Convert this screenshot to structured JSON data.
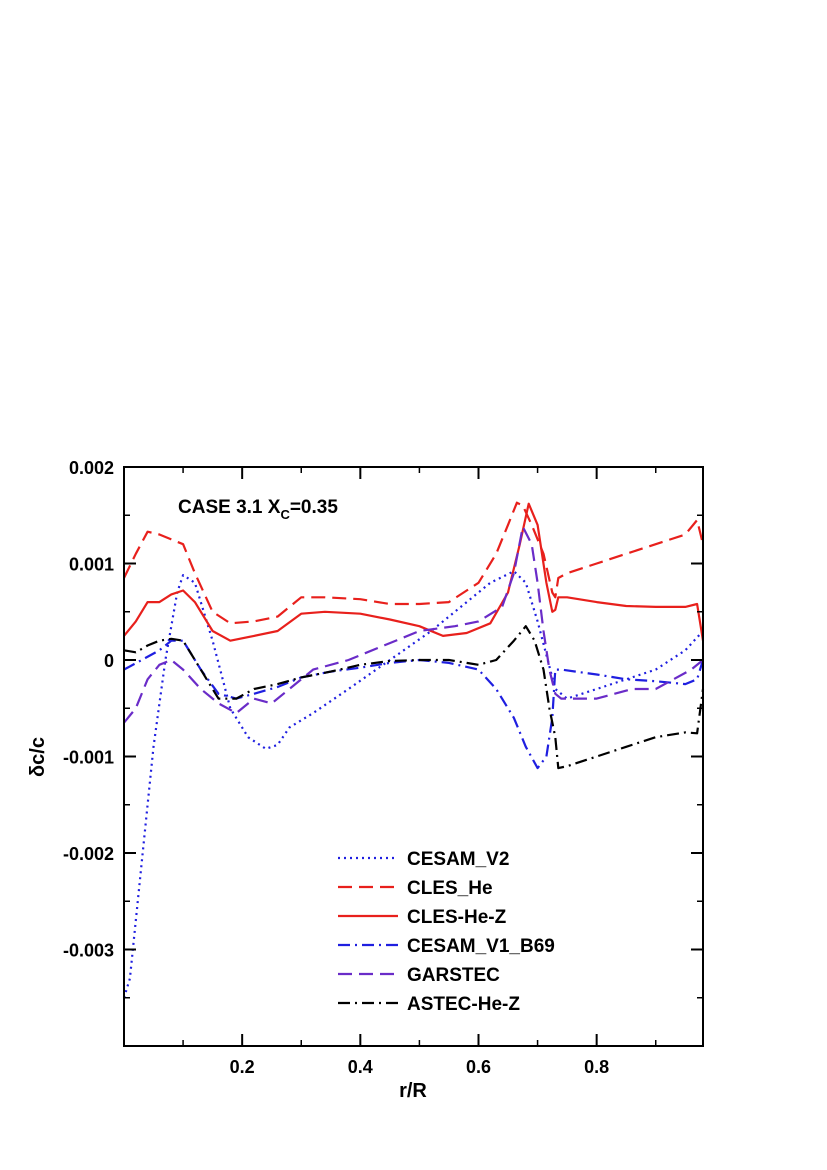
{
  "chart_data": {
    "type": "line",
    "annotation": {
      "text": "CASE 3.1 X",
      "sub": "C",
      "suffix": "=0.35"
    },
    "xlabel": "r/R",
    "ylabel": "δc/c",
    "xlim": [
      0.0,
      0.98
    ],
    "ylim": [
      -0.004,
      0.002
    ],
    "xticks": [
      0.2,
      0.4,
      0.6,
      0.8
    ],
    "xtick_labels": [
      "0.2",
      "0.4",
      "0.6",
      "0.8"
    ],
    "yticks": [
      0.002,
      0.001,
      0.0,
      -0.001,
      -0.002,
      -0.003
    ],
    "ytick_labels": [
      "0.002",
      "0.001",
      "0",
      "-0.001",
      "-0.002",
      "-0.003"
    ],
    "grid": false,
    "legend_position": "bottom-center",
    "series": [
      {
        "name": "CESAM_V2",
        "color": "#1f1fe0",
        "dash": "dotted",
        "x": [
          0.0,
          0.01,
          0.03,
          0.05,
          0.07,
          0.09,
          0.1,
          0.12,
          0.15,
          0.18,
          0.21,
          0.24,
          0.26,
          0.28,
          0.32,
          0.38,
          0.45,
          0.52,
          0.58,
          0.62,
          0.66,
          0.68,
          0.7,
          0.73,
          0.75,
          0.8,
          0.85,
          0.9,
          0.95,
          0.98
        ],
        "y": [
          -0.0035,
          -0.0033,
          -0.0021,
          -0.0009,
          0.0,
          0.0007,
          0.00088,
          0.0008,
          0.0002,
          -0.0005,
          -0.0008,
          -0.00092,
          -0.00088,
          -0.0007,
          -0.00055,
          -0.0003,
          0.0,
          0.0003,
          0.0006,
          0.0008,
          0.00092,
          0.0008,
          0.0004,
          -0.0003,
          -0.0004,
          -0.0003,
          -0.0002,
          -0.0001,
          0.0001,
          0.0003
        ]
      },
      {
        "name": "CLES_He",
        "color": "#e8201c",
        "dash": "dashed",
        "x": [
          0.0,
          0.02,
          0.04,
          0.06,
          0.08,
          0.1,
          0.12,
          0.15,
          0.18,
          0.22,
          0.26,
          0.3,
          0.34,
          0.4,
          0.45,
          0.5,
          0.55,
          0.6,
          0.63,
          0.65,
          0.665,
          0.675,
          0.69,
          0.71,
          0.725,
          0.73,
          0.735,
          0.75,
          0.8,
          0.85,
          0.9,
          0.95,
          0.97,
          0.98
        ],
        "y": [
          0.00085,
          0.0011,
          0.00133,
          0.0013,
          0.00125,
          0.0012,
          0.0009,
          0.0005,
          0.00038,
          0.0004,
          0.00045,
          0.00065,
          0.00065,
          0.00063,
          0.00058,
          0.00058,
          0.0006,
          0.0008,
          0.0011,
          0.0014,
          0.00163,
          0.0016,
          0.0014,
          0.0011,
          0.0007,
          0.00065,
          0.00085,
          0.0009,
          0.001,
          0.0011,
          0.0012,
          0.0013,
          0.00145,
          0.0012
        ]
      },
      {
        "name": "CLES-He-Z",
        "color": "#e8201c",
        "dash": "solid",
        "x": [
          0.0,
          0.02,
          0.04,
          0.06,
          0.08,
          0.1,
          0.12,
          0.15,
          0.18,
          0.22,
          0.26,
          0.3,
          0.34,
          0.4,
          0.45,
          0.5,
          0.54,
          0.58,
          0.62,
          0.65,
          0.67,
          0.685,
          0.7,
          0.715,
          0.725,
          0.73,
          0.735,
          0.75,
          0.8,
          0.85,
          0.9,
          0.95,
          0.97,
          0.98
        ],
        "y": [
          0.00025,
          0.0004,
          0.0006,
          0.0006,
          0.00068,
          0.00072,
          0.0006,
          0.0003,
          0.0002,
          0.00025,
          0.0003,
          0.00048,
          0.0005,
          0.00048,
          0.00042,
          0.00035,
          0.00025,
          0.00028,
          0.00038,
          0.0007,
          0.0012,
          0.00162,
          0.0014,
          0.0008,
          0.0005,
          0.00052,
          0.00065,
          0.00065,
          0.0006,
          0.00056,
          0.00055,
          0.00055,
          0.00058,
          0.0002
        ]
      },
      {
        "name": "CESAM_V1_B69",
        "color": "#1f1fe0",
        "dash": "dashdot",
        "x": [
          0.0,
          0.03,
          0.06,
          0.08,
          0.1,
          0.13,
          0.16,
          0.19,
          0.22,
          0.26,
          0.3,
          0.35,
          0.4,
          0.45,
          0.5,
          0.55,
          0.6,
          0.63,
          0.66,
          0.68,
          0.7,
          0.715,
          0.725,
          0.73,
          0.74,
          0.8,
          0.85,
          0.9,
          0.95,
          0.97,
          0.98
        ],
        "y": [
          -0.0001,
          0.0,
          0.0001,
          0.0002,
          0.0002,
          -0.0001,
          -0.00035,
          -0.0004,
          -0.00035,
          -0.00028,
          -0.00018,
          -0.00012,
          -8e-05,
          -3e-05,
          0.0,
          -3e-05,
          -0.0001,
          -0.0003,
          -0.0006,
          -0.0009,
          -0.00112,
          -0.001,
          -0.0006,
          -0.0001,
          -0.0001,
          -0.00015,
          -0.0002,
          -0.00022,
          -0.00025,
          -0.0002,
          0.0
        ]
      },
      {
        "name": "GARSTEC",
        "color": "#6a2cc8",
        "dash": "dashed",
        "x": [
          0.0,
          0.02,
          0.04,
          0.06,
          0.08,
          0.1,
          0.13,
          0.16,
          0.19,
          0.22,
          0.25,
          0.28,
          0.32,
          0.38,
          0.44,
          0.5,
          0.56,
          0.6,
          0.64,
          0.66,
          0.675,
          0.69,
          0.7,
          0.71,
          0.72,
          0.73,
          0.74,
          0.8,
          0.86,
          0.9,
          0.93,
          0.96,
          0.98
        ],
        "y": [
          -0.00065,
          -0.0005,
          -0.0002,
          -5e-05,
          0.0,
          -0.0001,
          -0.0003,
          -0.00045,
          -0.00055,
          -0.0004,
          -0.00045,
          -0.0003,
          -0.0001,
          0.0,
          0.00015,
          0.0003,
          0.00035,
          0.0004,
          0.00055,
          0.0009,
          0.00138,
          0.0012,
          0.0008,
          0.0003,
          -0.0001,
          -0.00035,
          -0.0004,
          -0.0004,
          -0.0003,
          -0.0003,
          -0.0002,
          -0.0001,
          0.0
        ]
      },
      {
        "name": "ASTEC-He-Z",
        "color": "#000000",
        "dash": "dashdot",
        "x": [
          0.0,
          0.02,
          0.04,
          0.06,
          0.08,
          0.1,
          0.13,
          0.16,
          0.19,
          0.22,
          0.26,
          0.3,
          0.35,
          0.4,
          0.45,
          0.5,
          0.55,
          0.6,
          0.63,
          0.66,
          0.68,
          0.695,
          0.71,
          0.72,
          0.73,
          0.735,
          0.75,
          0.8,
          0.85,
          0.9,
          0.95,
          0.97,
          0.98
        ],
        "y": [
          0.0001,
          8e-05,
          0.00015,
          0.0002,
          0.00022,
          0.0002,
          -0.0001,
          -0.0004,
          -0.0004,
          -0.0003,
          -0.00025,
          -0.00018,
          -0.00012,
          -5e-05,
          -1e-05,
          0.0,
          0.0,
          -5e-05,
          0.0,
          0.0002,
          0.00035,
          0.0002,
          -0.0001,
          -0.0005,
          -0.0008,
          -0.00112,
          -0.0011,
          -0.001,
          -0.0009,
          -0.0008,
          -0.00075,
          -0.00076,
          -0.0003
        ]
      }
    ]
  }
}
